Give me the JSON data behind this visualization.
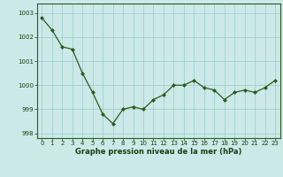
{
  "x": [
    0,
    1,
    2,
    3,
    4,
    5,
    6,
    7,
    8,
    9,
    10,
    11,
    12,
    13,
    14,
    15,
    16,
    17,
    18,
    19,
    20,
    21,
    22,
    23
  ],
  "y": [
    1002.8,
    1002.3,
    1001.6,
    1001.5,
    1000.5,
    999.7,
    998.8,
    998.4,
    999.0,
    999.1,
    999.0,
    999.4,
    999.6,
    1000.0,
    1000.0,
    1000.2,
    999.9,
    999.8,
    999.4,
    999.7,
    999.8,
    999.7,
    999.9,
    1000.2
  ],
  "line_color": "#2d5a1b",
  "marker": "D",
  "marker_size": 2.0,
  "bg_color": "#cce8e8",
  "grid_color": "#99cccc",
  "xlabel": "Graphe pression niveau de la mer (hPa)",
  "xlabel_color": "#1a4010",
  "tick_color": "#1a4010",
  "ylim": [
    997.8,
    1003.4
  ],
  "yticks": [
    998,
    999,
    1000,
    1001,
    1002,
    1003
  ],
  "xticks": [
    0,
    1,
    2,
    3,
    4,
    5,
    6,
    7,
    8,
    9,
    10,
    11,
    12,
    13,
    14,
    15,
    16,
    17,
    18,
    19,
    20,
    21,
    22,
    23
  ],
  "spine_color": "#2d5a1b",
  "xlabel_fontsize": 6.0,
  "tick_fontsize": 5.0
}
